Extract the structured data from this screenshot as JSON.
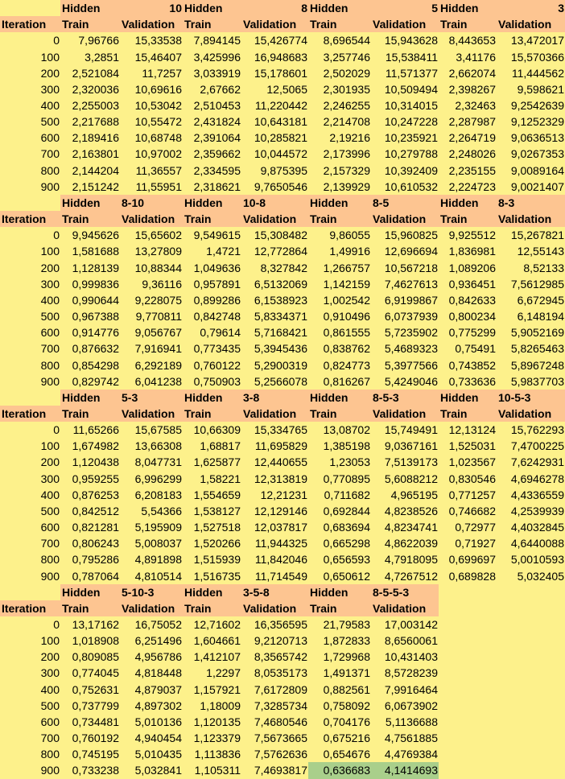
{
  "header_words": {
    "hidden": "Hidden",
    "train": "Train",
    "validation": "Validation",
    "iteration": "Iteration"
  },
  "blocks": [
    {
      "groups": [
        "10",
        "8",
        "5",
        "3"
      ],
      "group_label_align": "right",
      "rows": [
        [
          "0",
          "7,96766",
          "15,33538",
          "7,894145",
          "15,426774",
          "8,696544",
          "15,943628",
          "8,443653",
          "13,472017"
        ],
        [
          "100",
          "3,2851",
          "15,46407",
          "3,425996",
          "16,948683",
          "3,257746",
          "15,538411",
          "3,41176",
          "15,570366"
        ],
        [
          "200",
          "2,521084",
          "11,7257",
          "3,033919",
          "15,178601",
          "2,502029",
          "11,571377",
          "2,662074",
          "11,444562"
        ],
        [
          "300",
          "2,320036",
          "10,69616",
          "2,67662",
          "12,5065",
          "2,301935",
          "10,509494",
          "2,398267",
          "9,598621"
        ],
        [
          "400",
          "2,255003",
          "10,53042",
          "2,510453",
          "11,220442",
          "2,246255",
          "10,314015",
          "2,32463",
          "9,2542639"
        ],
        [
          "500",
          "2,217688",
          "10,55472",
          "2,431824",
          "10,643181",
          "2,214708",
          "10,247228",
          "2,287987",
          "9,1252329"
        ],
        [
          "600",
          "2,189416",
          "10,68748",
          "2,391064",
          "10,285821",
          "2,19216",
          "10,235921",
          "2,264719",
          "9,0636513"
        ],
        [
          "700",
          "2,163801",
          "10,97002",
          "2,359662",
          "10,044572",
          "2,173996",
          "10,279788",
          "2,248026",
          "9,0267353"
        ],
        [
          "800",
          "2,144204",
          "11,36557",
          "2,334595",
          "9,875395",
          "2,157329",
          "10,392409",
          "2,235155",
          "9,0089164"
        ],
        [
          "900",
          "2,151242",
          "11,55951",
          "2,318621",
          "9,7650546",
          "2,139929",
          "10,610532",
          "2,224723",
          "9,0021407"
        ]
      ]
    },
    {
      "groups": [
        "8-10",
        "10-8",
        "8-5",
        "8-3"
      ],
      "group_label_align": "left",
      "rows": [
        [
          "0",
          "9,945626",
          "15,65602",
          "9,549615",
          "15,308482",
          "9,86055",
          "15,960825",
          "9,925512",
          "15,267821"
        ],
        [
          "100",
          "1,581688",
          "13,27809",
          "1,4721",
          "12,772864",
          "1,49916",
          "12,696694",
          "1,836981",
          "12,55143"
        ],
        [
          "200",
          "1,128139",
          "10,88344",
          "1,049636",
          "8,327842",
          "1,266757",
          "10,567218",
          "1,089206",
          "8,52133"
        ],
        [
          "300",
          "0,999836",
          "9,36116",
          "0,957891",
          "6,5132069",
          "1,142159",
          "7,4627613",
          "0,936451",
          "7,5612985"
        ],
        [
          "400",
          "0,990644",
          "9,228075",
          "0,899286",
          "6,1538923",
          "1,002542",
          "6,9199867",
          "0,842633",
          "6,672945"
        ],
        [
          "500",
          "0,967388",
          "9,770811",
          "0,842748",
          "5,8334371",
          "0,910496",
          "6,0737939",
          "0,800234",
          "6,148194"
        ],
        [
          "600",
          "0,914776",
          "9,056767",
          "0,79614",
          "5,7168421",
          "0,861555",
          "5,7235902",
          "0,775299",
          "5,9052169"
        ],
        [
          "700",
          "0,876632",
          "7,916941",
          "0,773435",
          "5,3945436",
          "0,838762",
          "5,4689323",
          "0,75491",
          "5,8265463"
        ],
        [
          "800",
          "0,854298",
          "6,292189",
          "0,760122",
          "5,2900319",
          "0,824773",
          "5,3977566",
          "0,743852",
          "5,8967248"
        ],
        [
          "900",
          "0,829742",
          "6,041238",
          "0,750903",
          "5,2566078",
          "0,816267",
          "5,4249046",
          "0,733636",
          "5,9837703"
        ]
      ]
    },
    {
      "groups": [
        "5-3",
        "3-8",
        "8-5-3",
        "10-5-3"
      ],
      "group_label_align": "left",
      "rows": [
        [
          "0",
          "11,65266",
          "15,67585",
          "10,66309",
          "15,334765",
          "13,08702",
          "15,749491",
          "12,13124",
          "15,762293"
        ],
        [
          "100",
          "1,674982",
          "13,66308",
          "1,68817",
          "11,695829",
          "1,385198",
          "9,0367161",
          "1,525031",
          "7,4700225"
        ],
        [
          "200",
          "1,120438",
          "8,047731",
          "1,625877",
          "12,440655",
          "1,23053",
          "7,5139173",
          "1,023567",
          "7,6242931"
        ],
        [
          "300",
          "0,959255",
          "6,996299",
          "1,58221",
          "12,313819",
          "0,770895",
          "5,6088212",
          "0,830546",
          "4,6946278"
        ],
        [
          "400",
          "0,876253",
          "6,208183",
          "1,554659",
          "12,21231",
          "0,711682",
          "4,965195",
          "0,771257",
          "4,4336559"
        ],
        [
          "500",
          "0,842512",
          "5,54366",
          "1,538127",
          "12,129146",
          "0,692844",
          "4,8238526",
          "0,746682",
          "4,2539939"
        ],
        [
          "600",
          "0,821281",
          "5,195909",
          "1,527518",
          "12,037817",
          "0,683694",
          "4,8234741",
          "0,72977",
          "4,4032845"
        ],
        [
          "700",
          "0,806243",
          "5,008037",
          "1,520266",
          "11,944325",
          "0,665298",
          "4,8622039",
          "0,71927",
          "4,6440088"
        ],
        [
          "800",
          "0,795286",
          "4,891898",
          "1,515939",
          "11,842046",
          "0,656593",
          "4,7918095",
          "0,699697",
          "5,0010593"
        ],
        [
          "900",
          "0,787064",
          "4,810514",
          "1,516735",
          "11,714549",
          "0,650612",
          "4,7267512",
          "0,689828",
          "5,032405"
        ]
      ]
    },
    {
      "groups": [
        "5-10-3",
        "3-5-8",
        "8-5-5-3"
      ],
      "group_label_align": "left",
      "rows": [
        [
          "0",
          "13,17162",
          "16,75052",
          "12,71602",
          "16,356595",
          "21,79583",
          "17,003142"
        ],
        [
          "100",
          "1,018908",
          "6,251496",
          "1,604661",
          "9,2120713",
          "1,872833",
          "8,6560061"
        ],
        [
          "200",
          "0,809085",
          "4,956786",
          "1,412107",
          "8,3565742",
          "1,729968",
          "10,431403"
        ],
        [
          "300",
          "0,774045",
          "4,818448",
          "1,2297",
          "8,0535173",
          "1,491371",
          "8,5728239"
        ],
        [
          "400",
          "0,752631",
          "4,879037",
          "1,157921",
          "7,6172809",
          "0,882561",
          "7,9916464"
        ],
        [
          "500",
          "0,737799",
          "4,897302",
          "1,18009",
          "7,3285734",
          "0,758092",
          "6,0673902"
        ],
        [
          "600",
          "0,734481",
          "5,010136",
          "1,120135",
          "7,4680546",
          "0,704176",
          "5,1136688"
        ],
        [
          "700",
          "0,760192",
          "4,940454",
          "1,123379",
          "7,5673665",
          "0,675216",
          "4,7561885"
        ],
        [
          "800",
          "0,745195",
          "5,010435",
          "1,113836",
          "7,5762636",
          "0,654676",
          "4,4769384"
        ],
        [
          "900",
          "0,733238",
          "5,032841",
          "1,105311",
          "7,4693817",
          "0,636683",
          "4,1414693"
        ]
      ]
    }
  ],
  "highlight": {
    "block": 3,
    "row": 9,
    "cols": [
      5,
      6
    ],
    "color": "#a9cf8b"
  },
  "colors": {
    "header_bg": "#fdc591",
    "cell_bg": "#fdf18b",
    "highlight_bg": "#a9cf8b"
  }
}
